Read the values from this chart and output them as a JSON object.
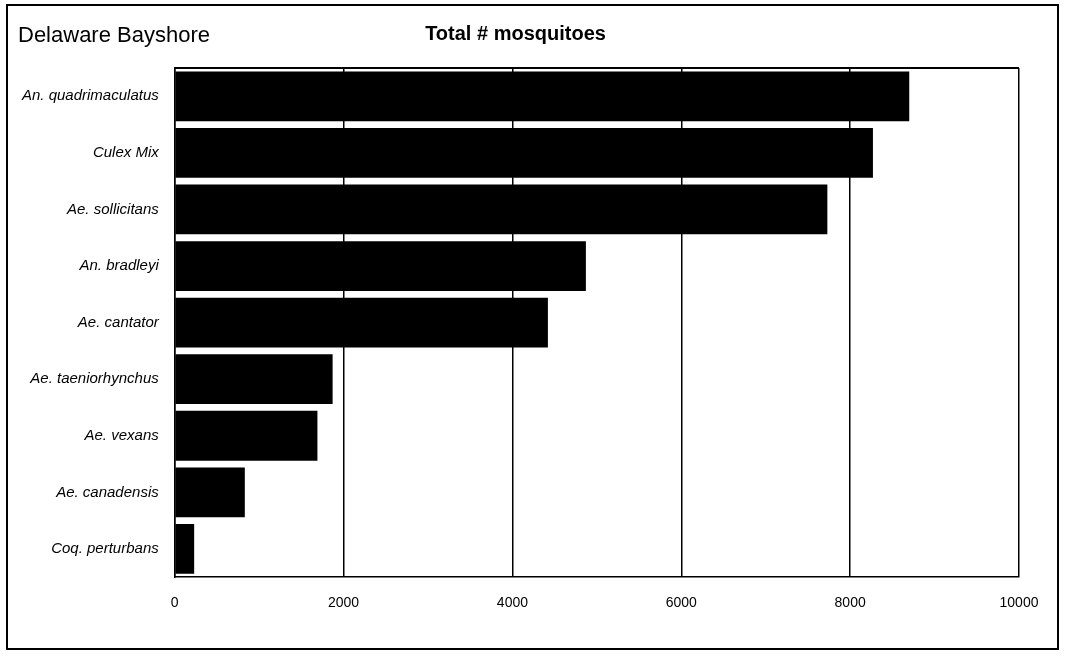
{
  "chart_data": {
    "type": "bar",
    "orientation": "horizontal",
    "title": "Total # mosquitoes",
    "annotations": [
      "Delaware Bayshore"
    ],
    "categories": [
      "An. quadrimaculatus",
      "Culex Mix",
      "Ae. sollicitans",
      "An. bradleyi",
      "Ae. cantator",
      "Ae. taeniorhynchus",
      "Ae. vexans",
      "Ae. canadensis",
      "Coq. perturbans"
    ],
    "values": [
      8700,
      8270,
      7730,
      4870,
      4420,
      1870,
      1690,
      830,
      230
    ],
    "color": "#000000",
    "xlim": [
      0,
      10000
    ],
    "xticks": [
      0,
      2000,
      4000,
      6000,
      8000,
      10000
    ],
    "grid": "x",
    "legend": false
  }
}
